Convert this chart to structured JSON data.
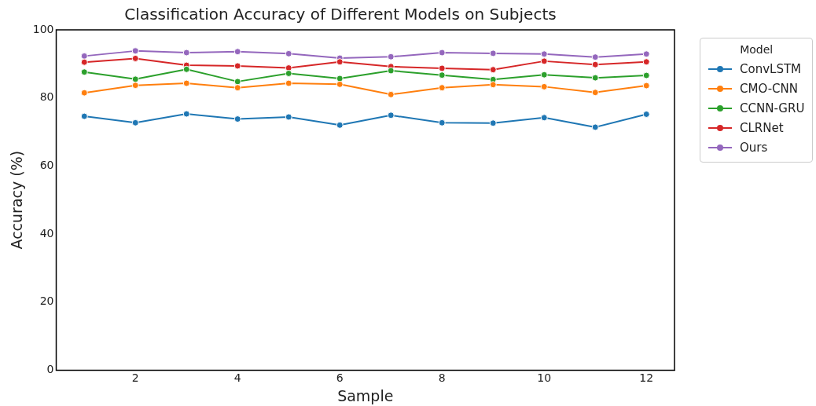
{
  "chart_data": {
    "type": "line",
    "title": "Classification Accuracy of Different Models on Subjects",
    "xlabel": "Sample",
    "ylabel": "Accuracy (%)",
    "legend_title": "Model",
    "x": [
      1,
      2,
      3,
      4,
      5,
      6,
      7,
      8,
      9,
      10,
      11,
      12
    ],
    "xlim": [
      0.45,
      12.55
    ],
    "xticks": [
      2,
      4,
      6,
      8,
      10,
      12
    ],
    "ylim": [
      0,
      100
    ],
    "yticks": [
      0,
      20,
      40,
      60,
      80,
      100
    ],
    "grid": false,
    "legend": "top right",
    "marker": "circle",
    "line_style": "solid",
    "series": [
      {
        "name": "ConvLSTM",
        "color": "#1f77b4",
        "values": [
          74.6,
          72.7,
          75.3,
          73.8,
          74.4,
          72.0,
          74.9,
          72.7,
          72.6,
          74.2,
          71.4,
          75.2
        ]
      },
      {
        "name": "CMO-CNN",
        "color": "#ff7f0e",
        "values": [
          81.5,
          83.7,
          84.3,
          83.0,
          84.3,
          84.0,
          81.0,
          83.0,
          83.9,
          83.3,
          81.6,
          83.6
        ]
      },
      {
        "name": "CCNN-GRU",
        "color": "#2ca02c",
        "values": [
          87.6,
          85.5,
          88.4,
          84.8,
          87.2,
          85.7,
          88.0,
          86.7,
          85.4,
          86.8,
          85.9,
          86.6
        ]
      },
      {
        "name": "CLRNet",
        "color": "#d62728",
        "values": [
          90.5,
          91.6,
          89.6,
          89.4,
          88.8,
          90.6,
          89.2,
          88.7,
          88.3,
          90.8,
          89.8,
          90.6
        ]
      },
      {
        "name": "Ours",
        "color": "#9467bd",
        "values": [
          92.3,
          93.8,
          93.3,
          93.6,
          93.0,
          91.7,
          92.1,
          93.3,
          93.1,
          92.9,
          92.0,
          92.9
        ]
      }
    ]
  }
}
